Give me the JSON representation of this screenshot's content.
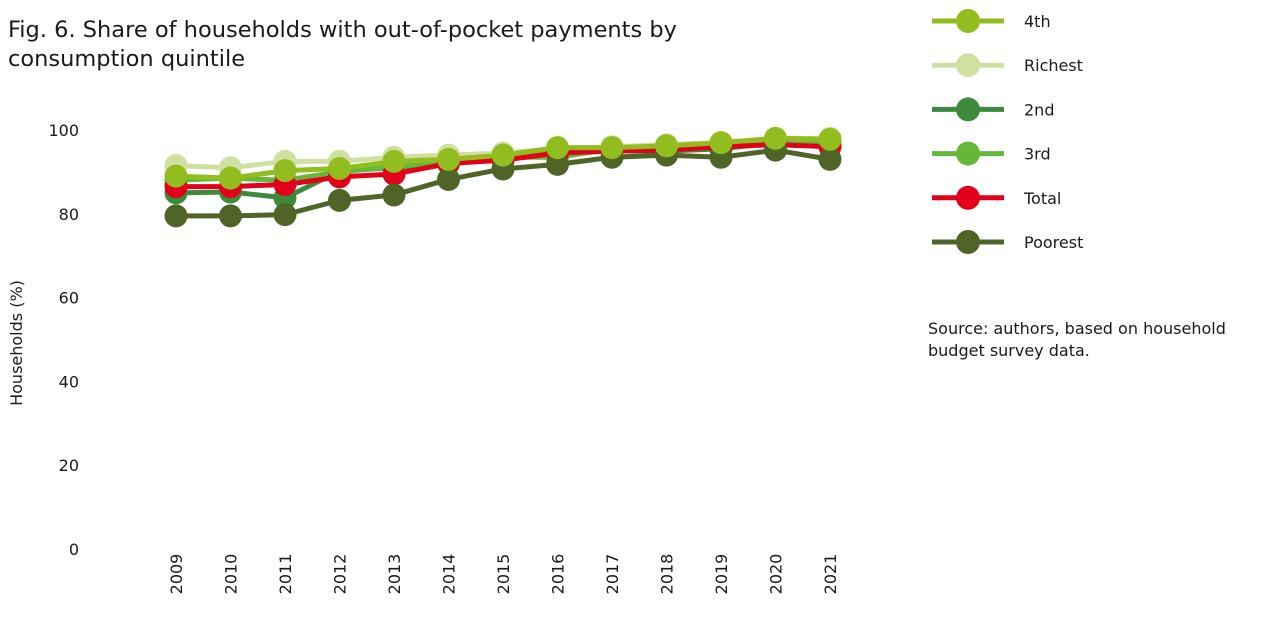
{
  "title": "Fig. 6. Share of households with out-of-pocket payments by consumption quintile",
  "source_note": "Source: authors, based on household budget survey data.",
  "chart_data": {
    "type": "line",
    "title": "Fig. 6. Share of households with out-of-pocket payments by consumption quintile",
    "xlabel": "",
    "ylabel": "Households (%)",
    "ylim": [
      0,
      100
    ],
    "yticks": [
      0,
      20,
      40,
      60,
      80,
      100
    ],
    "grid": false,
    "legend_position": "right",
    "categories": [
      "2009",
      "2010",
      "2011",
      "2012",
      "2013",
      "2014",
      "2015",
      "2016",
      "2017",
      "2018",
      "2019",
      "2020",
      "2021"
    ],
    "series": [
      {
        "name": "Richest",
        "color": "#cfe0a0",
        "values": [
          91.5,
          91,
          92.5,
          92.5,
          93.5,
          94,
          94.5,
          95.5,
          96,
          96.5,
          97,
          98,
          98
        ]
      },
      {
        "name": "2nd",
        "color": "#3d8a3c",
        "values": [
          85,
          85.2,
          83.8,
          90.2,
          91,
          92.2,
          93.5,
          94.5,
          95,
          95,
          95.5,
          97,
          96.5
        ]
      },
      {
        "name": "3rd",
        "color": "#63b83a",
        "values": [
          88,
          88.5,
          88,
          90,
          91.2,
          92.5,
          93.5,
          93.5,
          95.5,
          96,
          96.5,
          97.2,
          97
        ]
      },
      {
        "name": "Total",
        "color": "#e3001b",
        "values": [
          86.5,
          86.5,
          87,
          88.8,
          89.5,
          92,
          92.8,
          94.5,
          95,
          95.2,
          96,
          96.5,
          96
        ]
      },
      {
        "name": "Poorest",
        "color": "#4f6427",
        "values": [
          79.5,
          79.5,
          79.8,
          83.2,
          84.5,
          88.2,
          90.7,
          91.8,
          93.5,
          94,
          93.5,
          95.2,
          93
        ]
      },
      {
        "name": "4th",
        "color": "#92bd1f",
        "values": [
          89,
          88.5,
          90.3,
          90.8,
          92.5,
          93,
          94,
          95.8,
          95.8,
          96.2,
          97,
          98,
          97.8
        ]
      }
    ],
    "legend_order": [
      "4th",
      "Richest",
      "2nd",
      "3rd",
      "Total",
      "Poorest"
    ]
  }
}
